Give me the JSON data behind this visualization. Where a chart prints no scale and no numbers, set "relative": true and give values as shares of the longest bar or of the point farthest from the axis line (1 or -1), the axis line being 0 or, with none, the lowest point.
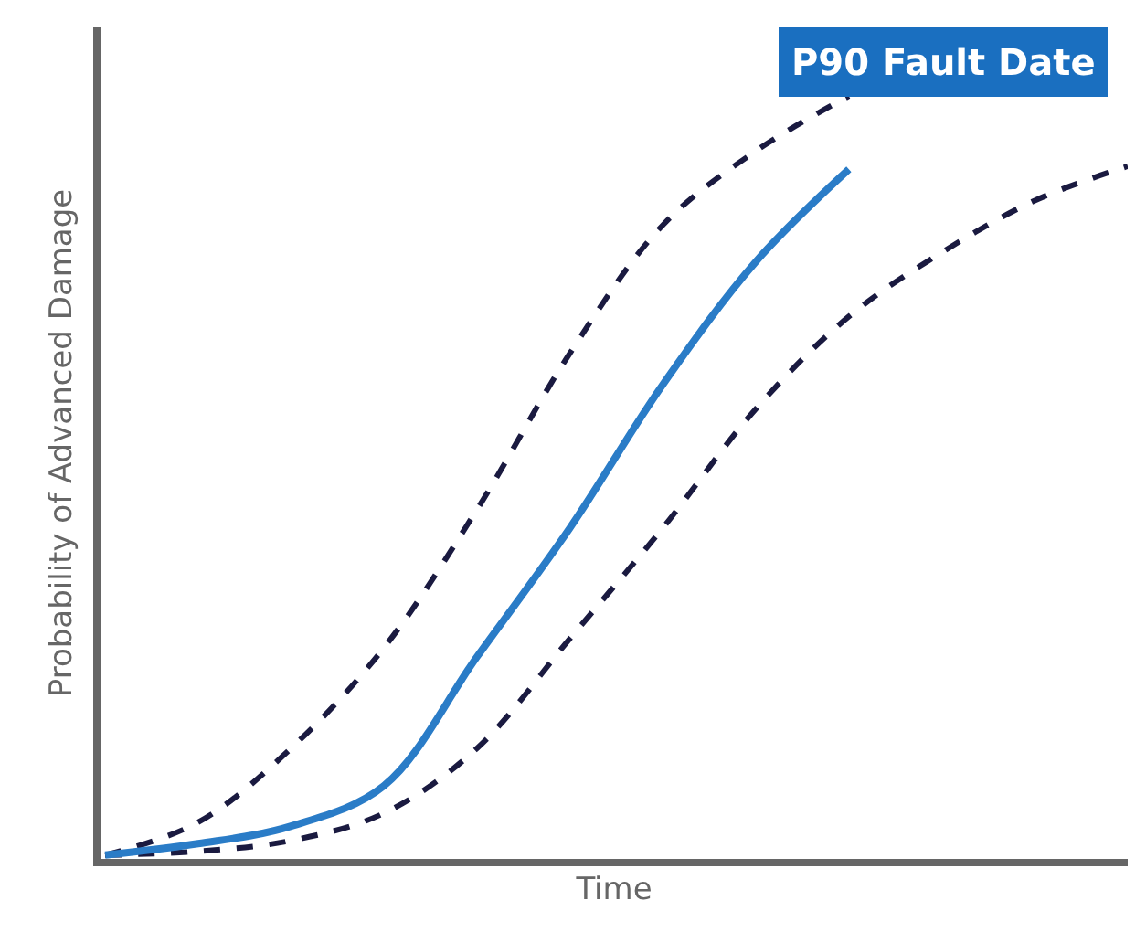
{
  "chart_data": {
    "type": "line",
    "xlabel": "Time",
    "ylabel": "Probability of Advanced Damage",
    "relative": true,
    "legend": false,
    "marker": "none",
    "tick_labels": false,
    "categories": [
      null,
      null,
      null,
      null,
      null,
      null,
      null,
      null,
      null,
      null,
      null,
      null
    ],
    "series": [
      {
        "color": "#1a1a40",
        "line_style": "dashed",
        "values": [
          0.005,
          0.048,
          0.145,
          0.277,
          0.458,
          0.663,
          0.831,
          0.928,
          1.0,
          null,
          null,
          null
        ]
      },
      {
        "color": "#1a1a40",
        "line_style": "dashed",
        "values": [
          0.005,
          0.01,
          0.024,
          0.06,
          0.145,
          0.289,
          0.434,
          0.59,
          0.711,
          0.795,
          0.863,
          0.908
        ]
      },
      {
        "color": "#2a7cc7",
        "line_style": "solid",
        "values": [
          0.005,
          0.02,
          0.043,
          0.096,
          0.265,
          0.434,
          0.622,
          0.783,
          0.904,
          null,
          null,
          null
        ]
      }
    ],
    "annotations": [
      "P90 Fault Date"
    ]
  }
}
